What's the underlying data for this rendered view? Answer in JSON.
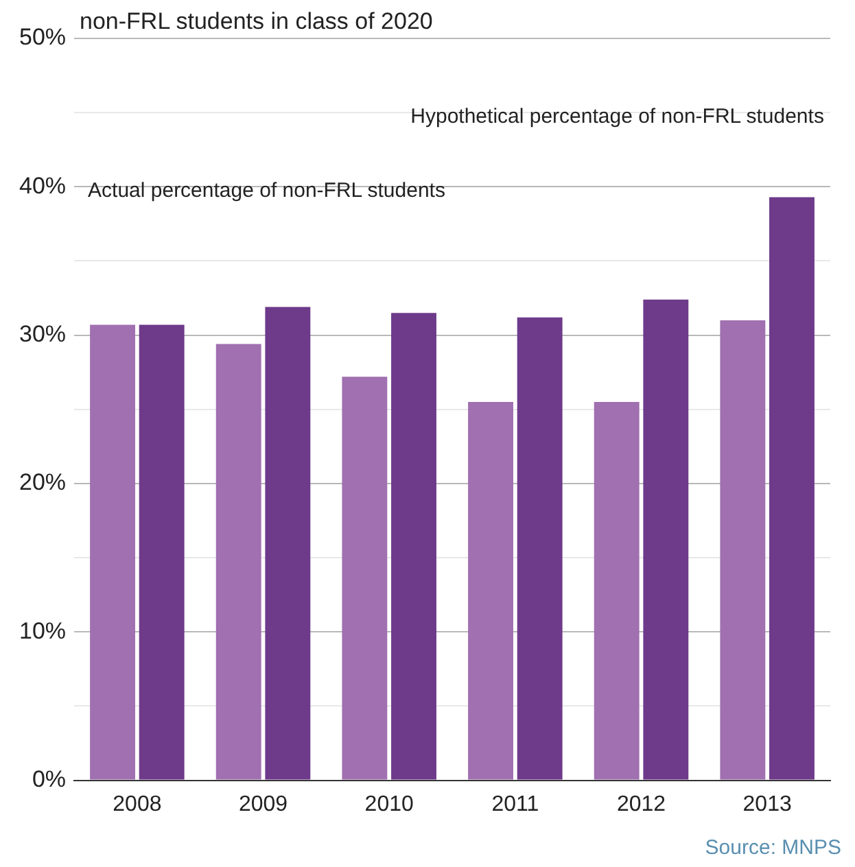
{
  "chart_data": {
    "type": "bar",
    "categories": [
      "2008",
      "2009",
      "2010",
      "2011",
      "2012",
      "2013"
    ],
    "series": [
      {
        "color": "#a070b0",
        "values": [
          30.7,
          29.4,
          27.2,
          25.5,
          25.5,
          31.0
        ]
      },
      {
        "color": "#6e3a8a",
        "values": [
          30.7,
          31.9,
          31.5,
          31.2,
          32.4,
          39.3
        ]
      }
    ],
    "ylim": [
      0,
      50
    ],
    "yticks": [
      {
        "value": 0,
        "label": "0%"
      },
      {
        "value": 5,
        "label": null
      },
      {
        "value": 10,
        "label": "10%"
      },
      {
        "value": 15,
        "label": null
      },
      {
        "value": 20,
        "label": "20%"
      },
      {
        "value": 25,
        "label": null
      },
      {
        "value": 30,
        "label": "30%"
      },
      {
        "value": 35,
        "label": null
      },
      {
        "value": 40,
        "label": "40%"
      },
      {
        "value": 45,
        "label": null
      },
      {
        "value": 50,
        "label": "50%"
      }
    ],
    "title": "non-FRL students in class of 2020",
    "grid": "y",
    "legend": false,
    "annotations": [
      "Actual percentage of non-FRL students",
      "Hypothetical percentage of non-FRL students",
      "Source: MNPS"
    ]
  }
}
